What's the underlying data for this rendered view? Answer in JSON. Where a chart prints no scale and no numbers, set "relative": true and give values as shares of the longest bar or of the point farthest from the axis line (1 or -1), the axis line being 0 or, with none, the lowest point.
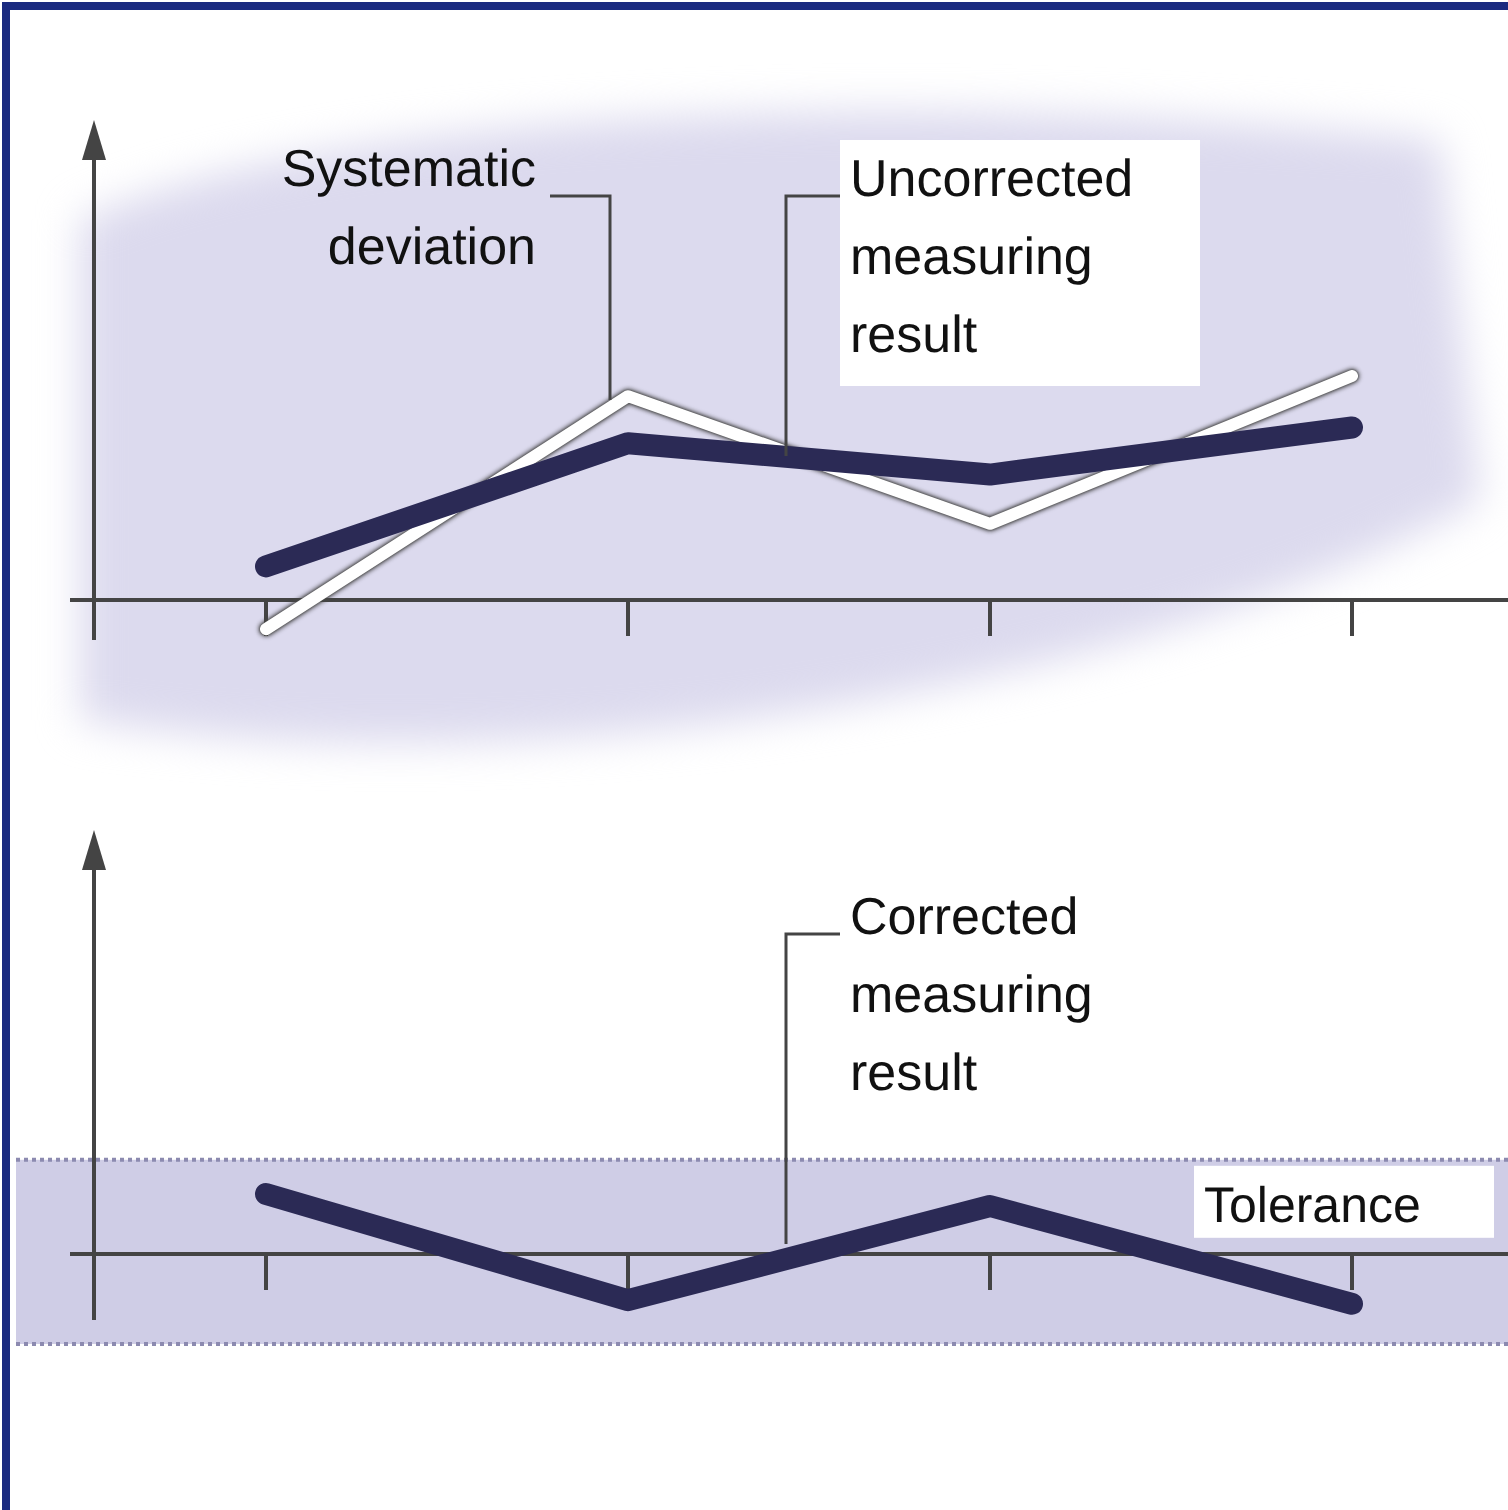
{
  "chart_data": [
    {
      "type": "line",
      "categories": [
        null,
        null,
        null,
        null
      ],
      "relative": true,
      "series": [
        {
          "color": "#ffffff",
          "values": [
            -0.13,
            0.91,
            0.34,
            1
          ]
        },
        {
          "color": "#2b2a55",
          "values": [
            0.15,
            0.7,
            0.56,
            0.77
          ]
        }
      ],
      "annotations": [
        "Systematic deviation",
        "Uncorrected measuring result"
      ]
    },
    {
      "type": "line",
      "categories": [
        null,
        null,
        null,
        null
      ],
      "relative": true,
      "series": [
        {
          "color": "#2b2a55",
          "values": [
            1,
            -0.77,
            0.8,
            -0.83
          ]
        }
      ],
      "bands": [
        {
          "axis": "y",
          "from": -1.5,
          "to": 1.57,
          "label": "Tolerance",
          "color": "#cfcde6"
        }
      ],
      "annotations": [
        "Corrected measuring result"
      ]
    }
  ]
}
